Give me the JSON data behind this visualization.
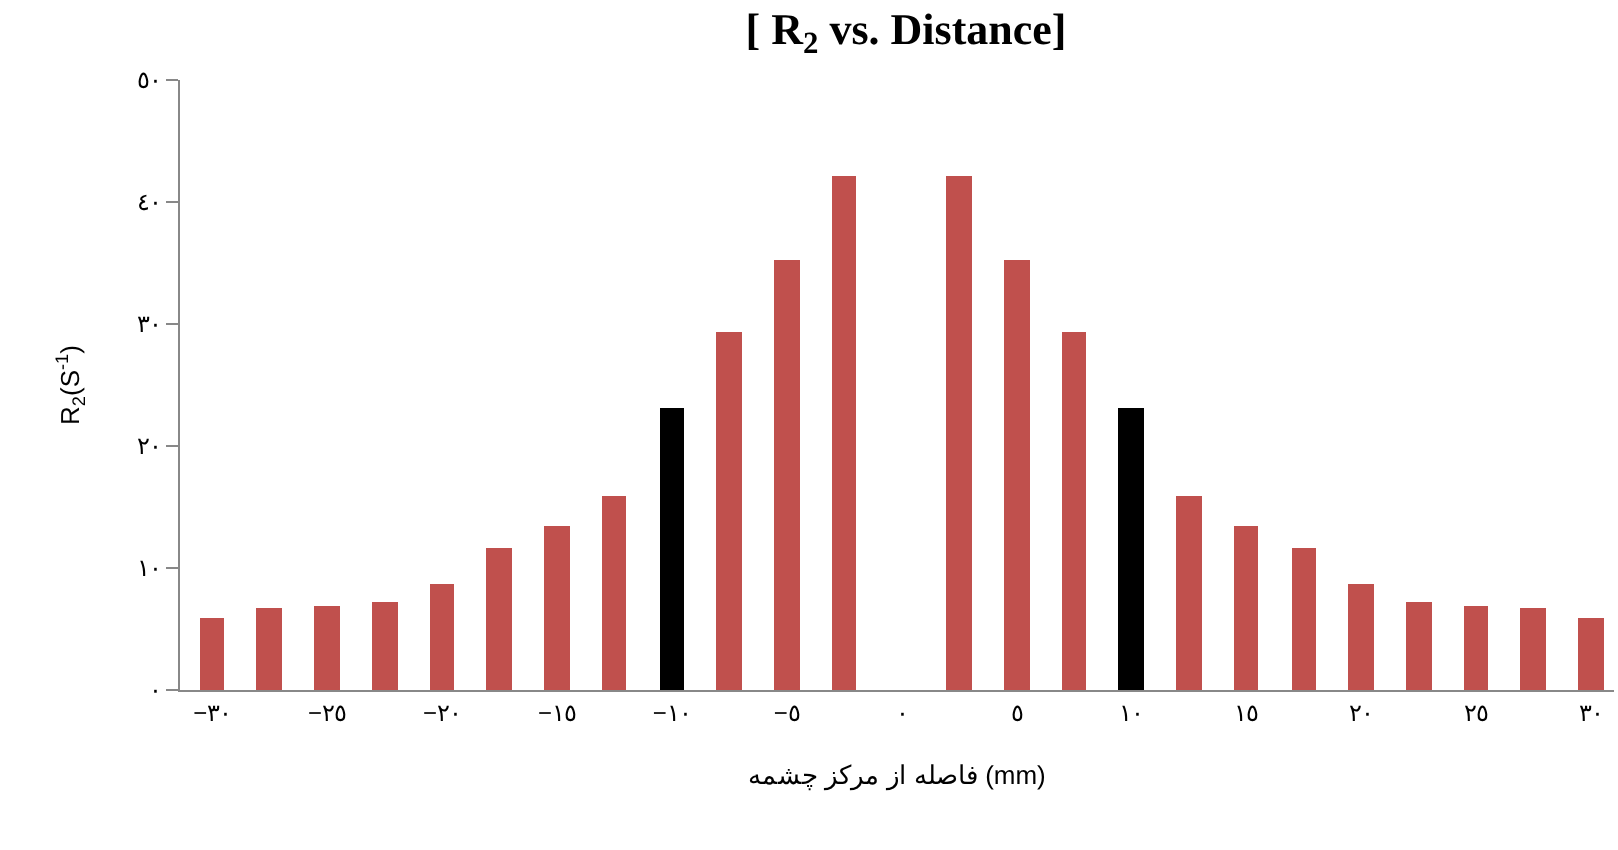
{
  "chart_data": {
    "type": "bar",
    "title": "[ R$_{2}$ vs. Distance]",
    "xlabel": "فاصله از مرکز چشمه (mm)",
    "ylabel": "R$_{2}$(S$^{-1}$)",
    "x": [
      -30,
      -27.5,
      -25,
      -22.5,
      -20,
      -17.5,
      -15,
      -12.5,
      -10,
      -7.5,
      -5,
      -2.5,
      2.5,
      5,
      7.5,
      10,
      12.5,
      15,
      17.5,
      20,
      22.5,
      25,
      27.5,
      30
    ],
    "values": [
      5.9,
      6.7,
      6.9,
      7.2,
      8.7,
      11.7,
      13.5,
      15.9,
      23.1,
      29.4,
      35.2,
      42.2,
      42.2,
      35.2,
      29.4,
      23.1,
      15.9,
      13.5,
      11.7,
      8.7,
      7.2,
      6.9,
      6.7,
      5.9
    ],
    "colors": [
      "#c0504d",
      "#c0504d",
      "#c0504d",
      "#c0504d",
      "#c0504d",
      "#c0504d",
      "#c0504d",
      "#c0504d",
      "#000000",
      "#c0504d",
      "#c0504d",
      "#c0504d",
      "#c0504d",
      "#c0504d",
      "#c0504d",
      "#000000",
      "#c0504d",
      "#c0504d",
      "#c0504d",
      "#c0504d",
      "#c0504d",
      "#c0504d",
      "#c0504d",
      "#c0504d"
    ],
    "xlim": [
      -31.4,
      31
    ],
    "yticks": [
      {
        "value": 0,
        "label": "٠"
      },
      {
        "value": 10,
        "label": "١٠"
      },
      {
        "value": 20,
        "label": "٢٠"
      },
      {
        "value": 30,
        "label": "٣٠"
      },
      {
        "value": 40,
        "label": "٤٠"
      },
      {
        "value": 50,
        "label": "٥٠"
      }
    ],
    "xticks": [
      {
        "value": -30,
        "label": "−٣٠"
      },
      {
        "value": -25,
        "label": "−٢٥"
      },
      {
        "value": -20,
        "label": "−٢٠"
      },
      {
        "value": -15,
        "label": "−١٥"
      },
      {
        "value": -10,
        "label": "−١٠"
      },
      {
        "value": -5,
        "label": "−٥"
      },
      {
        "value": 0,
        "label": "٠"
      },
      {
        "value": 5,
        "label": "٥"
      },
      {
        "value": 10,
        "label": "١٠"
      },
      {
        "value": 15,
        "label": "١٥"
      },
      {
        "value": 20,
        "label": "٢٠"
      },
      {
        "value": 25,
        "label": "٢٥"
      },
      {
        "value": 30,
        "label": "٣٠"
      }
    ],
    "ylim": [
      0,
      50
    ]
  }
}
